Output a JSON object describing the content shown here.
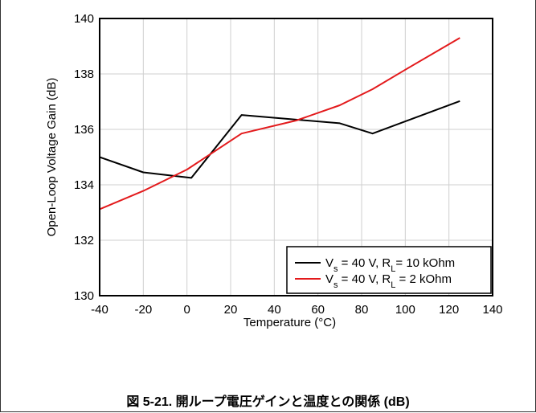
{
  "chart_data": {
    "type": "line",
    "xlabel": "Temperature (°C)",
    "ylabel": "Open-Loop Voltage Gain (dB)",
    "xlim": [
      -40,
      140
    ],
    "ylim": [
      130,
      140
    ],
    "xticks": [
      -40,
      -20,
      0,
      20,
      40,
      60,
      80,
      100,
      120,
      140
    ],
    "yticks": [
      130,
      132,
      134,
      136,
      138,
      140
    ],
    "grid": true,
    "legend_position": "bottom-right",
    "series": [
      {
        "legend": {
          "a": "V",
          "a_sub": "s",
          "b": " = 40 V, R",
          "b_sub": "L",
          "c": "= 10 kOhm"
        },
        "color": "#000000",
        "x": [
          -40,
          -20,
          2,
          25,
          70,
          85,
          125
        ],
        "y": [
          135.0,
          134.45,
          134.25,
          136.52,
          136.22,
          135.85,
          137.02
        ]
      },
      {
        "legend": {
          "a": "V",
          "a_sub": "s",
          "b": " = 40 V, R",
          "b_sub": "L",
          "c": " = 2 kOhm"
        },
        "color": "#e31a1c",
        "x": [
          -40,
          -20,
          0,
          25,
          50,
          70,
          85,
          100,
          125
        ],
        "y": [
          133.12,
          133.78,
          134.55,
          135.85,
          136.32,
          136.87,
          137.45,
          138.15,
          139.3
        ]
      }
    ]
  },
  "caption": "図 5-21. 開ループ電圧ゲインと温度との関係 (dB)"
}
